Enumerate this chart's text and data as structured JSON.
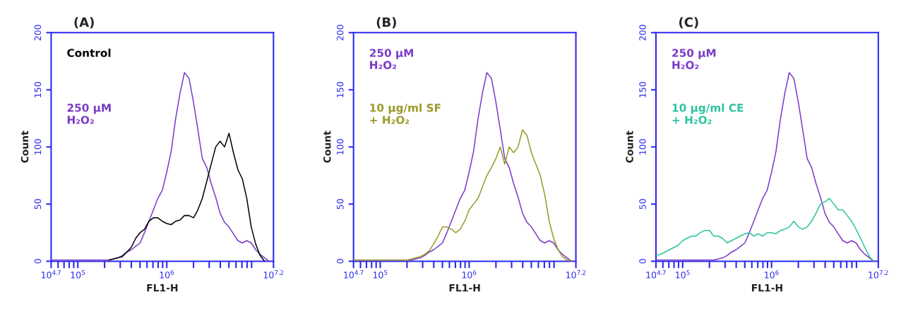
{
  "chart_data": [
    {
      "type": "line",
      "title": "(A)",
      "xlabel": "FL1-H",
      "ylabel": "Count",
      "log": "x",
      "legend": false,
      "grid": false,
      "x": [
        50200,
        56200,
        63100,
        70800,
        79400,
        89100,
        100000,
        112000,
        126000,
        141000,
        158000,
        178000,
        200000,
        224000,
        251000,
        282000,
        316000,
        355000,
        398000,
        447000,
        501000,
        562000,
        631000,
        708000,
        794000,
        891000,
        1000000,
        1120000,
        1260000,
        1410000,
        1580000,
        1780000,
        2000000,
        2240000,
        2510000,
        2820000,
        3160000,
        3550000,
        3980000,
        4470000,
        5010000,
        5620000,
        6310000,
        7080000,
        7940000,
        8910000,
        10000000,
        11200000,
        12600000,
        14100000,
        15800000
      ],
      "xlim": [
        50119,
        15848932
      ],
      "ylim": [
        0,
        200
      ],
      "yticks": [
        0,
        50,
        100,
        150,
        200
      ],
      "xticks": [
        {
          "value": 50119,
          "label": "10$^{4.7}$"
        },
        {
          "value": 60000,
          "label": null
        },
        {
          "value": 70000,
          "label": null
        },
        {
          "value": 80000,
          "label": null
        },
        {
          "value": 90000,
          "label": null
        },
        {
          "value": 100000,
          "label": "10$^{5}$"
        },
        {
          "value": 200000,
          "label": null
        },
        {
          "value": 300000,
          "label": null
        },
        {
          "value": 400000,
          "label": null
        },
        {
          "value": 500000,
          "label": null
        },
        {
          "value": 600000,
          "label": null
        },
        {
          "value": 700000,
          "label": null
        },
        {
          "value": 800000,
          "label": null
        },
        {
          "value": 900000,
          "label": null
        },
        {
          "value": 1000000,
          "label": "10$^{6}$"
        },
        {
          "value": 2000000,
          "label": null
        },
        {
          "value": 3000000,
          "label": null
        },
        {
          "value": 4000000,
          "label": null
        },
        {
          "value": 5000000,
          "label": null
        },
        {
          "value": 6000000,
          "label": null
        },
        {
          "value": 7000000,
          "label": null
        },
        {
          "value": 8000000,
          "label": null
        },
        {
          "value": 9000000,
          "label": null
        },
        {
          "value": 15848932,
          "label": "10$^{7.2}$"
        }
      ],
      "series": [
        {
          "name": "Control",
          "color": "#000000",
          "values": [
            null,
            null,
            null,
            null,
            null,
            null,
            null,
            null,
            null,
            null,
            null,
            null,
            null,
            1,
            2,
            3,
            4,
            8,
            12,
            20,
            25,
            28,
            35,
            38,
            38,
            35,
            33,
            32,
            35,
            36,
            40,
            40,
            38,
            45,
            55,
            70,
            85,
            100,
            105,
            100,
            112,
            95,
            80,
            72,
            55,
            30,
            15,
            5,
            0,
            null,
            null
          ]
        },
        {
          "name": "250 µM\nH₂O₂",
          "color": "#7a3bc9",
          "values": [
            1,
            1,
            1,
            1,
            1,
            1,
            1,
            1,
            1,
            1,
            1,
            1,
            1,
            1,
            2,
            3,
            5,
            8,
            10,
            13,
            16,
            25,
            35,
            45,
            55,
            62,
            78,
            96,
            125,
            147,
            165,
            160,
            139,
            115,
            90,
            82,
            68,
            56,
            42,
            34,
            30,
            24,
            18,
            16,
            18,
            16,
            10,
            6,
            3,
            0,
            0
          ]
        }
      ]
    },
    {
      "type": "line",
      "title": "(B)",
      "xlabel": "FL1-H",
      "ylabel": "Count",
      "log": "x",
      "legend": false,
      "grid": false,
      "x": [
        50200,
        56200,
        63100,
        70800,
        79400,
        89100,
        100000,
        112000,
        126000,
        141000,
        158000,
        178000,
        200000,
        224000,
        251000,
        282000,
        316000,
        355000,
        398000,
        447000,
        501000,
        562000,
        631000,
        708000,
        794000,
        891000,
        1000000,
        1120000,
        1260000,
        1410000,
        1580000,
        1780000,
        2000000,
        2240000,
        2510000,
        2820000,
        3160000,
        3550000,
        3980000,
        4470000,
        5010000,
        5620000,
        6310000,
        7080000,
        7940000,
        8910000,
        10000000,
        11200000,
        12600000,
        14100000,
        15800000
      ],
      "xlim": [
        50119,
        15848932
      ],
      "ylim": [
        0,
        200
      ],
      "yticks": [
        0,
        50,
        100,
        150,
        200
      ],
      "xticks": [
        {
          "value": 50119,
          "label": "10$^{4.7}$"
        },
        {
          "value": 60000,
          "label": null
        },
        {
          "value": 70000,
          "label": null
        },
        {
          "value": 80000,
          "label": null
        },
        {
          "value": 90000,
          "label": null
        },
        {
          "value": 100000,
          "label": "10$^{5}$"
        },
        {
          "value": 200000,
          "label": null
        },
        {
          "value": 300000,
          "label": null
        },
        {
          "value": 400000,
          "label": null
        },
        {
          "value": 500000,
          "label": null
        },
        {
          "value": 600000,
          "label": null
        },
        {
          "value": 700000,
          "label": null
        },
        {
          "value": 800000,
          "label": null
        },
        {
          "value": 900000,
          "label": null
        },
        {
          "value": 1000000,
          "label": "10$^{6}$"
        },
        {
          "value": 2000000,
          "label": null
        },
        {
          "value": 3000000,
          "label": null
        },
        {
          "value": 4000000,
          "label": null
        },
        {
          "value": 5000000,
          "label": null
        },
        {
          "value": 6000000,
          "label": null
        },
        {
          "value": 7000000,
          "label": null
        },
        {
          "value": 8000000,
          "label": null
        },
        {
          "value": 9000000,
          "label": null
        },
        {
          "value": 15848932,
          "label": "10$^{7.2}$"
        }
      ],
      "series": [
        {
          "name": "250 µM\nH₂O₂",
          "color": "#7a3bc9",
          "values": [
            1,
            1,
            1,
            1,
            1,
            1,
            1,
            1,
            1,
            1,
            1,
            1,
            1,
            1,
            2,
            3,
            5,
            8,
            10,
            13,
            16,
            25,
            35,
            45,
            55,
            62,
            78,
            96,
            125,
            147,
            165,
            160,
            139,
            115,
            90,
            82,
            68,
            56,
            42,
            34,
            30,
            24,
            18,
            16,
            18,
            16,
            10,
            6,
            3,
            0,
            0
          ]
        },
        {
          "name": "10 µg/ml SF\n+ H₂O₂",
          "color": "#9a9a28",
          "values": [
            1,
            1,
            1,
            1,
            1,
            1,
            1,
            1,
            1,
            1,
            1,
            1,
            1,
            2,
            3,
            4,
            6,
            9,
            15,
            22,
            30,
            30,
            28,
            25,
            28,
            35,
            45,
            50,
            55,
            65,
            75,
            82,
            90,
            100,
            85,
            100,
            95,
            100,
            115,
            110,
            95,
            85,
            75,
            58,
            35,
            20,
            10,
            4,
            1,
            0,
            null
          ]
        }
      ]
    },
    {
      "type": "line",
      "title": "(C)",
      "xlabel": "FL1-H",
      "ylabel": "Count",
      "log": "x",
      "legend": false,
      "grid": false,
      "x": [
        50200,
        56200,
        63100,
        70800,
        79400,
        89100,
        100000,
        112000,
        126000,
        141000,
        158000,
        178000,
        200000,
        224000,
        251000,
        282000,
        316000,
        355000,
        398000,
        447000,
        501000,
        562000,
        631000,
        708000,
        794000,
        891000,
        1000000,
        1120000,
        1260000,
        1410000,
        1580000,
        1780000,
        2000000,
        2240000,
        2510000,
        2820000,
        3160000,
        3550000,
        3980000,
        4470000,
        5010000,
        5620000,
        6310000,
        7080000,
        7940000,
        8910000,
        10000000,
        11200000,
        12600000,
        14100000,
        15800000
      ],
      "xlim": [
        50119,
        15848932
      ],
      "ylim": [
        0,
        200
      ],
      "yticks": [
        0,
        50,
        100,
        150,
        200
      ],
      "xticks": [
        {
          "value": 50119,
          "label": "10$^{4.7}$"
        },
        {
          "value": 60000,
          "label": null
        },
        {
          "value": 70000,
          "label": null
        },
        {
          "value": 80000,
          "label": null
        },
        {
          "value": 90000,
          "label": null
        },
        {
          "value": 100000,
          "label": "10$^{5}$"
        },
        {
          "value": 200000,
          "label": null
        },
        {
          "value": 300000,
          "label": null
        },
        {
          "value": 400000,
          "label": null
        },
        {
          "value": 500000,
          "label": null
        },
        {
          "value": 600000,
          "label": null
        },
        {
          "value": 700000,
          "label": null
        },
        {
          "value": 800000,
          "label": null
        },
        {
          "value": 900000,
          "label": null
        },
        {
          "value": 1000000,
          "label": "10$^{6}$"
        },
        {
          "value": 2000000,
          "label": null
        },
        {
          "value": 3000000,
          "label": null
        },
        {
          "value": 4000000,
          "label": null
        },
        {
          "value": 5000000,
          "label": null
        },
        {
          "value": 6000000,
          "label": null
        },
        {
          "value": 7000000,
          "label": null
        },
        {
          "value": 8000000,
          "label": null
        },
        {
          "value": 9000000,
          "label": null
        },
        {
          "value": 15848932,
          "label": "10$^{7.2}$"
        }
      ],
      "series": [
        {
          "name": "250 µM\nH₂O₂",
          "color": "#7a3bc9",
          "values": [
            1,
            1,
            1,
            1,
            1,
            1,
            1,
            1,
            1,
            1,
            1,
            1,
            1,
            1,
            2,
            3,
            5,
            8,
            10,
            13,
            16,
            25,
            35,
            45,
            55,
            62,
            78,
            96,
            125,
            147,
            165,
            160,
            139,
            115,
            90,
            82,
            68,
            56,
            42,
            34,
            30,
            24,
            18,
            16,
            18,
            16,
            10,
            6,
            3,
            0,
            0
          ]
        },
        {
          "name": "10 µg/ml CE\n+ H₂O₂",
          "color": "#2cc3a0",
          "values": [
            5,
            6,
            8,
            10,
            12,
            14,
            18,
            20,
            22,
            22,
            25,
            27,
            27,
            22,
            22,
            20,
            16,
            18,
            20,
            22,
            24,
            25,
            22,
            24,
            22,
            25,
            25,
            24,
            27,
            28,
            30,
            35,
            30,
            28,
            30,
            35,
            42,
            50,
            52,
            55,
            50,
            45,
            45,
            40,
            35,
            28,
            20,
            12,
            4,
            0,
            null
          ]
        }
      ]
    }
  ]
}
